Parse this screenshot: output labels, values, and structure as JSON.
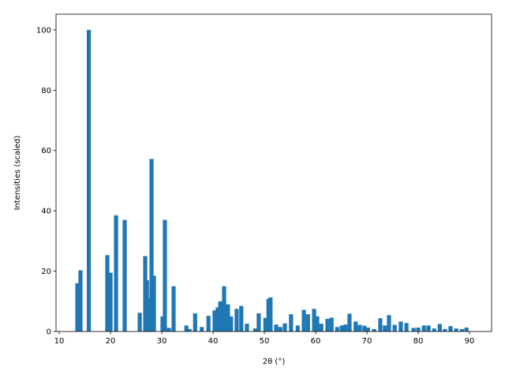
{
  "chart_data": {
    "type": "bar",
    "x_label": "2θ (°)",
    "y_label": "Intensities (scaled)",
    "color": "#1f77b4",
    "x": [
      13.54,
      14.15,
      15.77,
      19.38,
      20.0,
      21.08,
      22.77,
      25.7,
      26.77,
      27.1,
      27.4,
      28.0,
      28.46,
      30.15,
      30.6,
      31.4,
      32.3,
      34.8,
      35.4,
      36.5,
      37.8,
      39.1,
      40.3,
      40.9,
      41.4,
      42.15,
      42.9,
      43.5,
      44.6,
      45.5,
      46.6,
      48.2,
      48.9,
      50.2,
      50.8,
      51.2,
      52.3,
      53.1,
      54.0,
      55.2,
      56.5,
      57.7,
      58.5,
      59.7,
      60.3,
      61.1,
      62.3,
      63.1,
      64.2,
      65.1,
      65.8,
      66.6,
      67.8,
      68.6,
      69.5,
      70.2,
      71.4,
      72.6,
      73.5,
      74.3,
      75.4,
      76.6,
      77.7,
      79.1,
      80.0,
      81.1,
      82.0,
      83.1,
      84.2,
      85.2,
      86.3,
      87.4,
      88.5,
      89.4
    ],
    "values": [
      16,
      20.3,
      100,
      25.3,
      19.5,
      38.5,
      37,
      6.2,
      25,
      17,
      11,
      57.2,
      18.5,
      5,
      37,
      1.2,
      15,
      2,
      0.8,
      6,
      1.5,
      5.2,
      7,
      8,
      10,
      15,
      9,
      5,
      7.5,
      8.5,
      2.6,
      1,
      6,
      4.5,
      10.8,
      11.3,
      2.3,
      1.5,
      2.7,
      5.7,
      2,
      7.2,
      5.7,
      7.5,
      5,
      2.6,
      4.2,
      4.6,
      1.5,
      2,
      2.3,
      5.9,
      3.3,
      2.2,
      1.9,
      1.3,
      0.8,
      4.4,
      2,
      5.4,
      2.2,
      3.3,
      2.8,
      1.2,
      1.3,
      2,
      2,
      1,
      2.5,
      0.8,
      1.8,
      1,
      0.8,
      1.3
    ],
    "xlim": [
      9.38,
      94.3
    ],
    "ylim": [
      0,
      105.2
    ],
    "xticks": [
      10,
      20,
      30,
      40,
      50,
      60,
      70,
      80,
      90
    ],
    "yticks": [
      0,
      20,
      40,
      60,
      80,
      100
    ]
  }
}
